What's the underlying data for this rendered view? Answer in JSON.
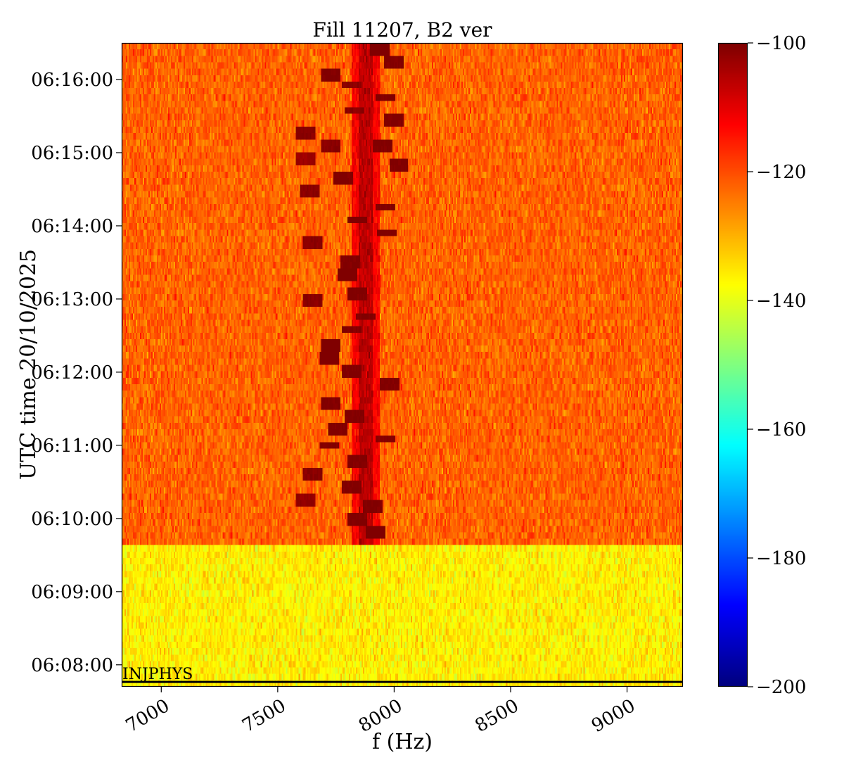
{
  "chart_data": {
    "type": "heatmap",
    "title": "Fill 11207, B2 ver",
    "xlabel": "f (Hz)",
    "ylabel": "UTC time 20/10/2025",
    "xlim": [
      6830,
      9240
    ],
    "x_ticks": [
      {
        "value": 7000,
        "label": "7000"
      },
      {
        "value": 7500,
        "label": "7500"
      },
      {
        "value": 8000,
        "label": "8000"
      },
      {
        "value": 8500,
        "label": "8500"
      },
      {
        "value": 9000,
        "label": "9000"
      }
    ],
    "ylim": [
      "06:07:42",
      "06:16:30"
    ],
    "y_ticks": [
      {
        "value": "06:08:00",
        "label": "06:08:00"
      },
      {
        "value": "06:09:00",
        "label": "06:09:00"
      },
      {
        "value": "06:10:00",
        "label": "06:10:00"
      },
      {
        "value": "06:11:00",
        "label": "06:11:00"
      },
      {
        "value": "06:12:00",
        "label": "06:12:00"
      },
      {
        "value": "06:13:00",
        "label": "06:13:00"
      },
      {
        "value": "06:14:00",
        "label": "06:14:00"
      },
      {
        "value": "06:15:00",
        "label": "06:15:00"
      },
      {
        "value": "06:16:00",
        "label": "06:16:00"
      }
    ],
    "colorbar": {
      "colormap": "jet",
      "range": [
        -200,
        -100
      ],
      "ticks": [
        {
          "value": -100,
          "label": "−100"
        },
        {
          "value": -120,
          "label": "−120"
        },
        {
          "value": -140,
          "label": "−140"
        },
        {
          "value": -160,
          "label": "−160"
        },
        {
          "value": -180,
          "label": "−180"
        },
        {
          "value": -200,
          "label": "−200"
        }
      ]
    },
    "regions": [
      {
        "time_start": "06:07:42",
        "time_end": "06:09:37",
        "mean_level": -136,
        "spread": 5
      },
      {
        "time_start": "06:09:37",
        "time_end": "06:16:30",
        "mean_level": -122,
        "spread": 5
      }
    ],
    "signal_line": {
      "freq": 7880,
      "level": -106,
      "time_start": "06:09:37",
      "time_end": "06:16:30"
    },
    "signal_blobs": [
      {
        "time": "06:09:50",
        "freq": 7920,
        "level": -100
      },
      {
        "time": "06:10:00",
        "freq": 7840,
        "level": -101
      },
      {
        "time": "06:10:08",
        "freq": 7910,
        "level": -101
      },
      {
        "time": "06:10:15",
        "freq": 7620,
        "level": -103
      },
      {
        "time": "06:10:25",
        "freq": 7820,
        "level": -101
      },
      {
        "time": "06:10:35",
        "freq": 7650,
        "level": -102
      },
      {
        "time": "06:10:45",
        "freq": 7840,
        "level": -101
      },
      {
        "time": "06:11:00",
        "freq": 7720,
        "level": -101
      },
      {
        "time": "06:11:05",
        "freq": 7960,
        "level": -102
      },
      {
        "time": "06:11:15",
        "freq": 7760,
        "level": -101
      },
      {
        "time": "06:11:25",
        "freq": 7830,
        "level": -101
      },
      {
        "time": "06:11:35",
        "freq": 7730,
        "level": -101
      },
      {
        "time": "06:11:50",
        "freq": 7980,
        "level": -101
      },
      {
        "time": "06:12:00",
        "freq": 7820,
        "level": -101
      },
      {
        "time": "06:12:10",
        "freq": 7720,
        "level": -100
      },
      {
        "time": "06:12:20",
        "freq": 7730,
        "level": -100
      },
      {
        "time": "06:12:35",
        "freq": 7820,
        "level": -101
      },
      {
        "time": "06:12:45",
        "freq": 7880,
        "level": -101
      },
      {
        "time": "06:13:00",
        "freq": 7650,
        "level": -102
      },
      {
        "time": "06:13:05",
        "freq": 7840,
        "level": -101
      },
      {
        "time": "06:13:20",
        "freq": 7800,
        "level": -100
      },
      {
        "time": "06:13:30",
        "freq": 7810,
        "level": -101
      },
      {
        "time": "06:13:45",
        "freq": 7650,
        "level": -102
      },
      {
        "time": "06:13:55",
        "freq": 7970,
        "level": -101
      },
      {
        "time": "06:14:05",
        "freq": 7840,
        "level": -100
      },
      {
        "time": "06:14:15",
        "freq": 7960,
        "level": -101
      },
      {
        "time": "06:14:30",
        "freq": 7640,
        "level": -102
      },
      {
        "time": "06:14:40",
        "freq": 7780,
        "level": -101
      },
      {
        "time": "06:14:50",
        "freq": 8020,
        "level": -101
      },
      {
        "time": "06:14:55",
        "freq": 7620,
        "level": -104
      },
      {
        "time": "06:15:05",
        "freq": 7730,
        "level": -102
      },
      {
        "time": "06:15:05",
        "freq": 7950,
        "level": -101
      },
      {
        "time": "06:15:15",
        "freq": 7620,
        "level": -102
      },
      {
        "time": "06:15:25",
        "freq": 8000,
        "level": -101
      },
      {
        "time": "06:15:35",
        "freq": 7830,
        "level": -102
      },
      {
        "time": "06:15:45",
        "freq": 7960,
        "level": -101
      },
      {
        "time": "06:15:55",
        "freq": 7820,
        "level": -102
      },
      {
        "time": "06:16:05",
        "freq": 7730,
        "level": -101
      },
      {
        "time": "06:16:15",
        "freq": 8000,
        "level": -101
      },
      {
        "time": "06:16:25",
        "freq": 7940,
        "level": -100
      }
    ],
    "annotations": [
      {
        "text": "INJPHYS",
        "time": "06:07:46",
        "freq": 6830,
        "marker": "horizontal-line"
      }
    ],
    "grid": false
  }
}
